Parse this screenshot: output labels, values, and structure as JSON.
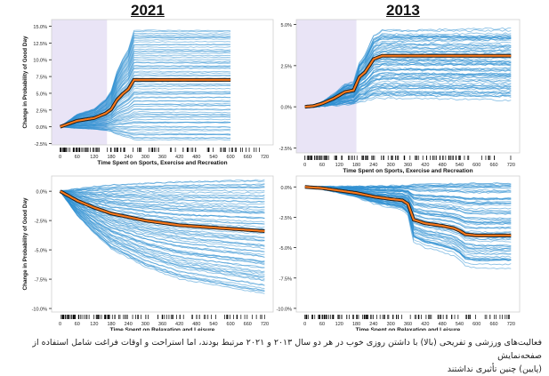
{
  "titles": {
    "left": "2021",
    "right": "2013"
  },
  "caption": {
    "line1": "فعالیت‌های ورزشی و تفریحی (بالا) با داشتن روزی خوب در هر دو سال ۲۰۱۳ و ۲۰۲۱ مرتبط بودند، اما استراحت و اوقات فراغت شامل استفاده از صفحه‌نمایش",
    "line2": "(پایین) چنین تأثیری نداشتند"
  },
  "colors": {
    "ice": "#2f8fd1",
    "mean": "#ff7a1a",
    "meanEdge": "#202020",
    "shade": "#e9e4f6",
    "axis": "#222222"
  },
  "chart_data": [
    {
      "type": "line",
      "panel": "top-left",
      "year": "2021",
      "xlabel": "Time Spent on Sports, Exercise and Recreation",
      "ylabel": "Change in Probability of Good Day",
      "xlim": [
        -30,
        750
      ],
      "ylim": [
        -2.7,
        16
      ],
      "xticks": [
        "0",
        "60",
        "120",
        "180",
        "240",
        "300",
        "360",
        "420",
        "480",
        "540",
        "600",
        "660",
        "720"
      ],
      "yticks": [
        "15.0%",
        "12.5%",
        "10.0%",
        "7.5%",
        "5.0%",
        "2.5%",
        "0.0%",
        "-2.5%"
      ],
      "shaded_x": [
        -30,
        165
      ],
      "mean_curve": [
        [
          0,
          0
        ],
        [
          20,
          0.3
        ],
        [
          60,
          0.9
        ],
        [
          120,
          1.3
        ],
        [
          160,
          2.0
        ],
        [
          180,
          2.6
        ],
        [
          200,
          4.0
        ],
        [
          220,
          4.9
        ],
        [
          240,
          5.6
        ],
        [
          260,
          7.0
        ],
        [
          600,
          7.0
        ]
      ],
      "ice_range": [
        -2.0,
        14.5
      ]
    },
    {
      "type": "line",
      "panel": "top-right",
      "year": "2013",
      "xlabel": "Time Spent on Sports, Exercise and Recreation",
      "ylabel": "",
      "xlim": [
        -30,
        750
      ],
      "ylim": [
        -2.8,
        5.3
      ],
      "xticks": [
        "0",
        "60",
        "120",
        "180",
        "240",
        "300",
        "360",
        "420",
        "480",
        "540",
        "600",
        "660",
        "720"
      ],
      "yticks": [
        "5.0%",
        "2.5%",
        "0.0%",
        "-2.5%"
      ],
      "shaded_x": [
        -30,
        180
      ],
      "mean_curve": [
        [
          0,
          0
        ],
        [
          30,
          0.05
        ],
        [
          60,
          0.2
        ],
        [
          100,
          0.5
        ],
        [
          140,
          0.9
        ],
        [
          170,
          1.0
        ],
        [
          190,
          1.8
        ],
        [
          210,
          2.1
        ],
        [
          240,
          2.9
        ],
        [
          270,
          3.1
        ],
        [
          720,
          3.1
        ]
      ],
      "ice_range": [
        0.6,
        4.6
      ]
    },
    {
      "type": "line",
      "panel": "bottom-left",
      "year": "2021",
      "xlabel": "Time Spent on Relaxation and Leisure",
      "ylabel": "Change in Probability of Good Day",
      "xlim": [
        -30,
        750
      ],
      "ylim": [
        -10.3,
        1.3
      ],
      "xticks": [
        "0",
        "60",
        "120",
        "180",
        "240",
        "300",
        "360",
        "420",
        "480",
        "540",
        "600",
        "660",
        "720"
      ],
      "yticks": [
        "0.0%",
        "-2.5%",
        "-5.0%",
        "-7.5%",
        "-10.0%"
      ],
      "mean_curve": [
        [
          0,
          0
        ],
        [
          30,
          -0.4
        ],
        [
          60,
          -0.8
        ],
        [
          120,
          -1.4
        ],
        [
          180,
          -1.9
        ],
        [
          240,
          -2.2
        ],
        [
          300,
          -2.5
        ],
        [
          360,
          -2.7
        ],
        [
          420,
          -2.9
        ],
        [
          480,
          -3.0
        ],
        [
          540,
          -3.1
        ],
        [
          600,
          -3.2
        ],
        [
          660,
          -3.3
        ],
        [
          720,
          -3.4
        ]
      ],
      "ice_range": [
        -8.8,
        1.0
      ]
    },
    {
      "type": "line",
      "panel": "bottom-right",
      "year": "2013",
      "xlabel": "Time Spent on Relaxation and Leisure",
      "ylabel": "",
      "xlim": [
        -30,
        750
      ],
      "ylim": [
        -10.3,
        0.9
      ],
      "xticks": [
        "0",
        "60",
        "120",
        "180",
        "240",
        "300",
        "360",
        "420",
        "480",
        "540",
        "600",
        "660",
        "720"
      ],
      "yticks": [
        "0.0%",
        "-2.5%",
        "-5.0%",
        "-7.5%",
        "-10.0%"
      ],
      "mean_curve": [
        [
          0,
          0
        ],
        [
          60,
          -0.1
        ],
        [
          120,
          -0.3
        ],
        [
          180,
          -0.5
        ],
        [
          240,
          -0.8
        ],
        [
          300,
          -1.0
        ],
        [
          340,
          -1.1
        ],
        [
          360,
          -1.4
        ],
        [
          380,
          -2.7
        ],
        [
          420,
          -3.0
        ],
        [
          480,
          -3.2
        ],
        [
          520,
          -3.4
        ],
        [
          540,
          -3.6
        ],
        [
          560,
          -3.9
        ],
        [
          600,
          -4.0
        ],
        [
          720,
          -4.0
        ]
      ],
      "ice_range": [
        -6.5,
        0.5
      ]
    }
  ]
}
